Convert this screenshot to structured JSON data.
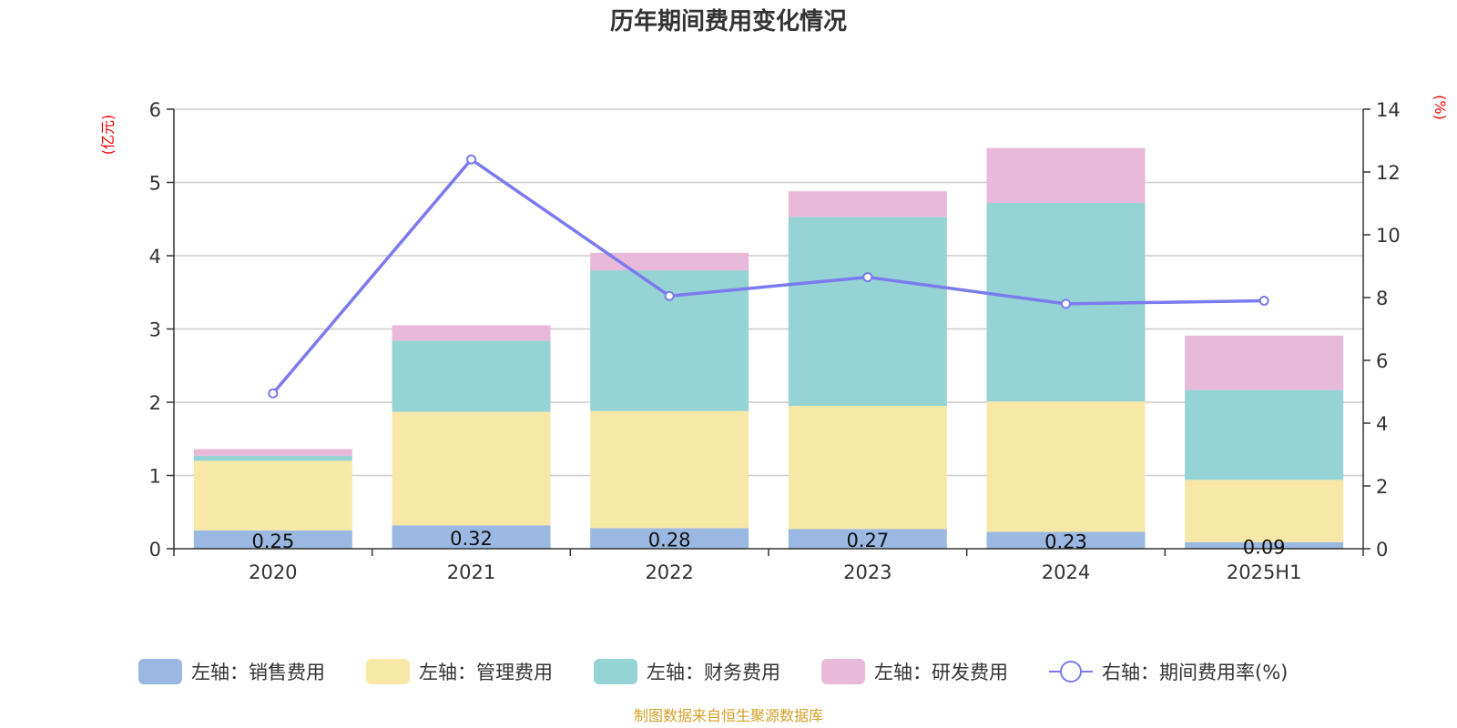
{
  "chart_data": {
    "type": "bar",
    "stacked": true,
    "title": "历年期间费用变化情况",
    "categories": [
      "2020",
      "2021",
      "2022",
      "2023",
      "2024",
      "2025H1"
    ],
    "left_axis_unit": "(亿元)",
    "right_axis_unit": "(%)",
    "ylim": [
      0,
      6
    ],
    "y_ticks": [
      0,
      1,
      2,
      3,
      4,
      5,
      6
    ],
    "y2lim": [
      0,
      14
    ],
    "y2_ticks": [
      0,
      2,
      4,
      6,
      8,
      10,
      12,
      14
    ],
    "grid": true,
    "legend_position": "bottom",
    "series": [
      {
        "name": "左轴：销售费用",
        "axis": "left",
        "type": "bar",
        "color": "#9bb8e2",
        "values": [
          0.25,
          0.32,
          0.28,
          0.27,
          0.23,
          0.09
        ],
        "data_labels": [
          "0.25",
          "0.32",
          "0.28",
          "0.27",
          "0.23",
          "0.09"
        ]
      },
      {
        "name": "左轴：管理费用",
        "axis": "left",
        "type": "bar",
        "color": "#f8e8a8",
        "values": [
          0.95,
          1.55,
          1.6,
          1.68,
          1.78,
          0.85
        ]
      },
      {
        "name": "左轴：财务费用",
        "axis": "left",
        "type": "bar",
        "color": "#96d3d4",
        "values": [
          0.07,
          0.97,
          1.92,
          2.58,
          2.71,
          1.23
        ]
      },
      {
        "name": "左轴：研发费用",
        "axis": "left",
        "type": "bar",
        "color": "#e8b9d9",
        "values": [
          0.09,
          0.21,
          0.24,
          0.35,
          0.75,
          0.74
        ]
      },
      {
        "name": "右轴：期间费用率(%)",
        "axis": "right",
        "type": "line",
        "color": "#7b7bef",
        "values": [
          4.95,
          12.4,
          8.05,
          8.65,
          7.8,
          7.9
        ]
      }
    ],
    "source": "制图数据来自恒生聚源数据库",
    "source_color": "#d4a02a"
  }
}
